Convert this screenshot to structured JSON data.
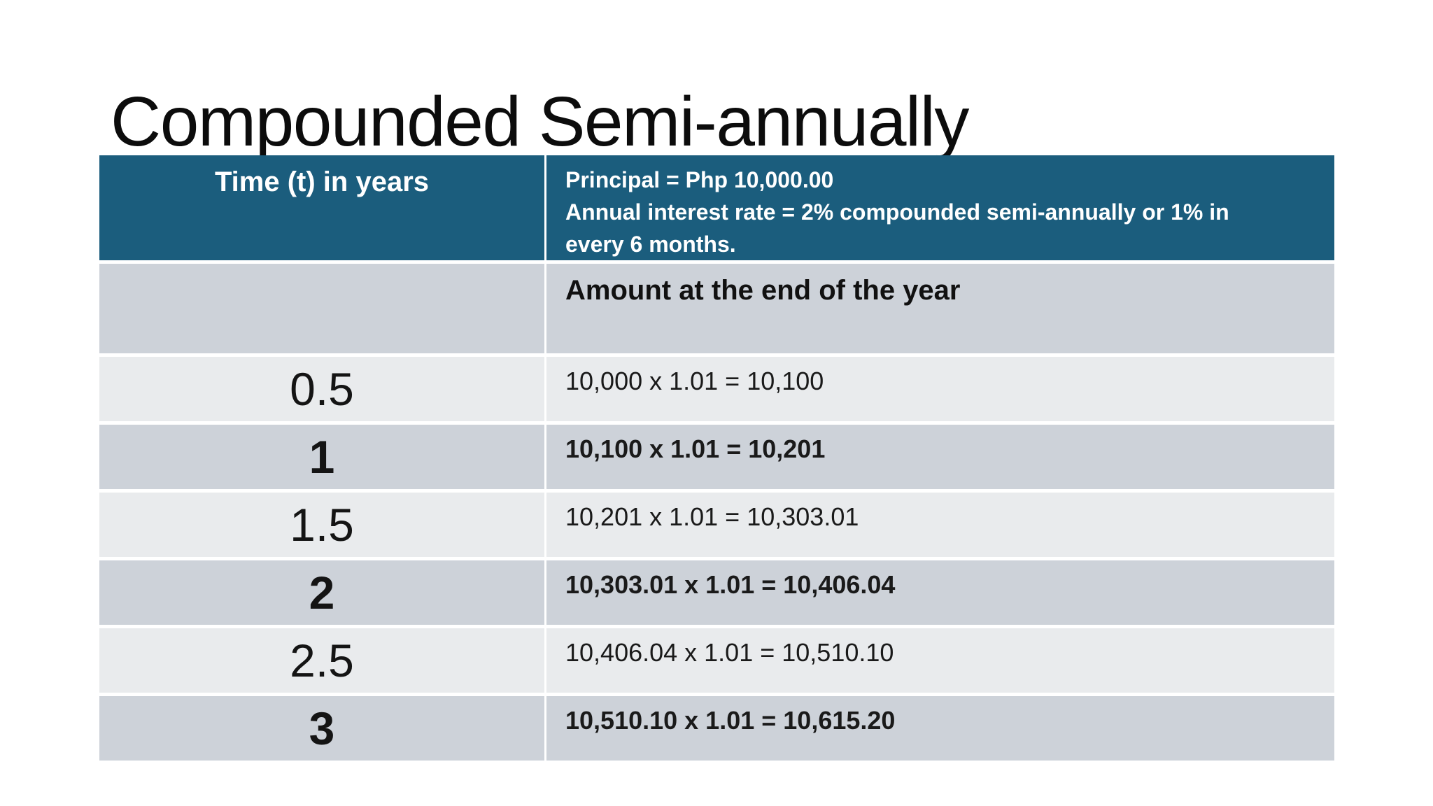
{
  "slide": {
    "title": "Compounded Semi-annually"
  },
  "colors": {
    "header_bg": "#1B5D7D",
    "header_text": "#FFFFFF",
    "row_gray": "#CDD2D9",
    "row_light": "#E9EBED",
    "background": "#FFFFFF"
  },
  "table": {
    "header": {
      "time_label": "Time (t) in years",
      "info_line1": "Principal = Php 10,000.00",
      "info_line2": "Annual interest rate = 2% compounded semi-annually or 1% in every 6 months."
    },
    "subheader": {
      "amount_label": "Amount at the end of the year"
    },
    "rows": [
      {
        "time": "0.5",
        "amount": "10,000 x 1.01 = 10,100",
        "bold": false
      },
      {
        "time": "1",
        "amount": "10,100 x 1.01 = 10,201",
        "bold": true
      },
      {
        "time": "1.5",
        "amount": "10,201 x 1.01 = 10,303.01",
        "bold": false
      },
      {
        "time": "2",
        "amount": "10,303.01 x 1.01 = 10,406.04",
        "bold": true
      },
      {
        "time": "2.5",
        "amount": "10,406.04 x 1.01 = 10,510.10",
        "bold": false
      },
      {
        "time": "3",
        "amount": "10,510.10 x 1.01 = 10,615.20",
        "bold": true
      }
    ]
  }
}
